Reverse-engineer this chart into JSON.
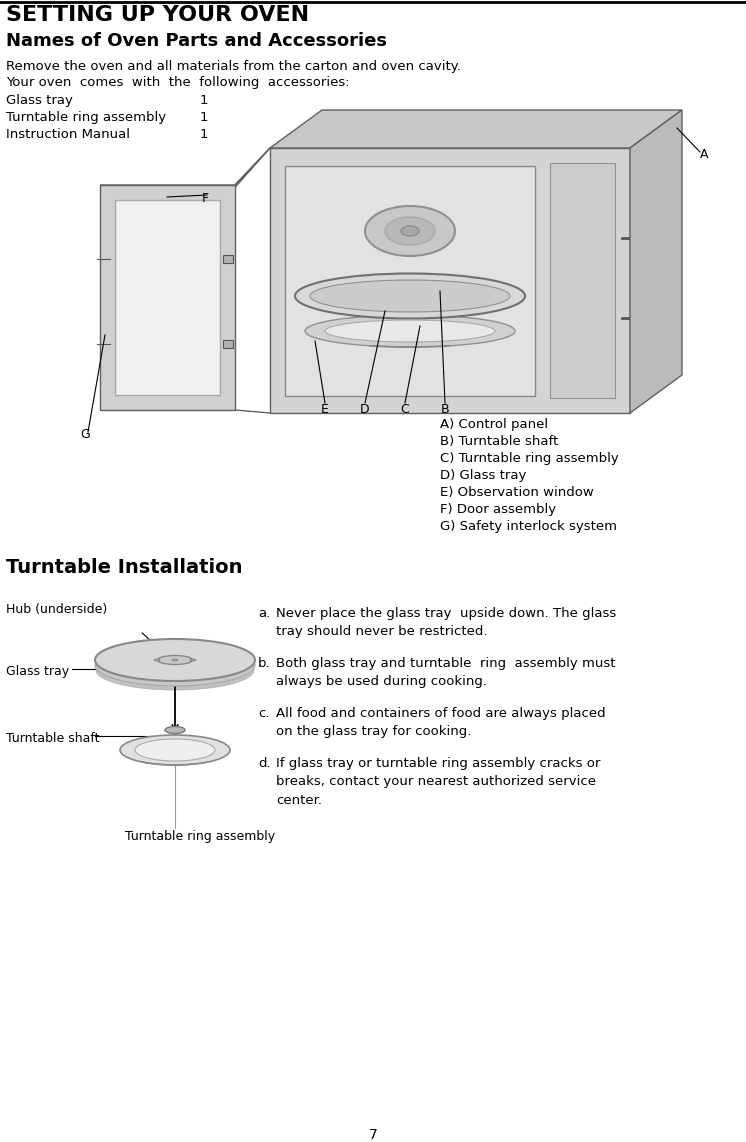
{
  "title": "SETTING UP YOUR OVEN",
  "subtitle": "Names of Oven Parts and Accessories",
  "intro_line1": "Remove the oven and all materials from the carton and oven cavity.",
  "intro_line2": "Your oven  comes  with  the  following  accessories:",
  "accessories": [
    {
      "name": "Glass tray",
      "qty": "1"
    },
    {
      "name": "Turntable ring assembly",
      "qty": "1"
    },
    {
      "name": "Instruction Manual",
      "qty": "1"
    }
  ],
  "parts_list": [
    "A) Control panel",
    "B) Turntable shaft",
    "C) Turntable ring assembly",
    "D) Glass tray",
    "E) Observation window",
    "F) Door assembly",
    "G) Safety interlock system"
  ],
  "turntable_title": "Turntable Installation",
  "instructions": [
    {
      "label": "a.",
      "text": "Never place the glass tray  upside down. The glass\ntray should never be restricted."
    },
    {
      "label": "b.",
      "text": "Both glass tray and turntable  ring  assembly must\nalways be used during cooking."
    },
    {
      "label": "c.",
      "text": "All food and containers of food are always placed\non the glass tray for cooking."
    },
    {
      "label": "d.",
      "text": "If glass tray or turntable ring assembly cracks or\nbreaks, contact your nearest authorized service\ncenter."
    }
  ],
  "page_number": "7",
  "bg_color": "#ffffff",
  "text_color": "#000000"
}
